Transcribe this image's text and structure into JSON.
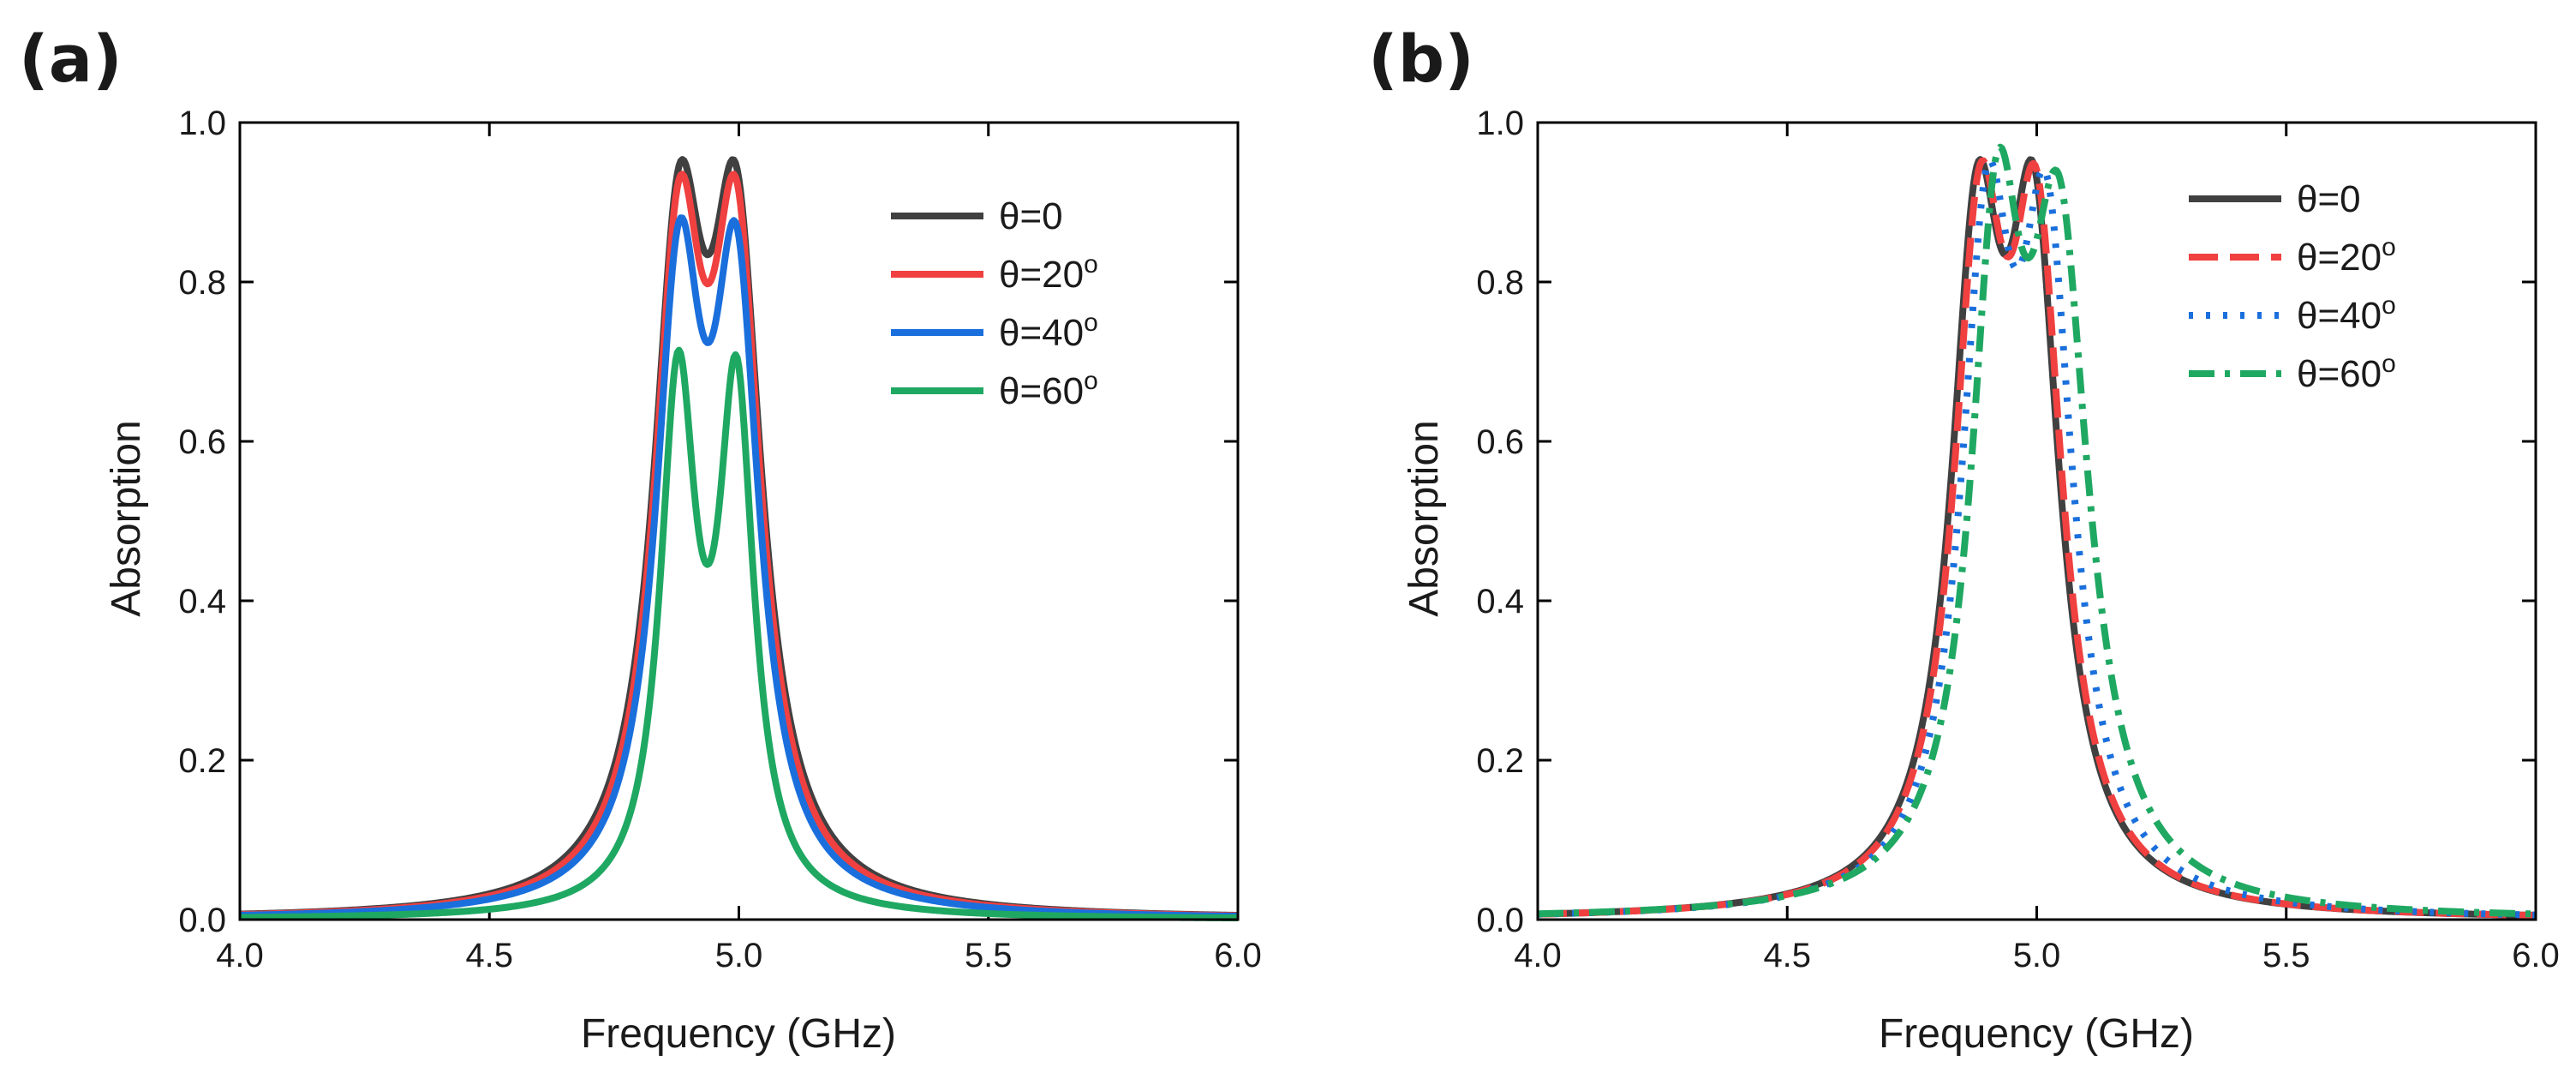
{
  "chart_data": [
    {
      "type": "line",
      "panel_label": "(a)",
      "xlabel": "Frequency (GHz)",
      "ylabel": "Absorption",
      "xlim": [
        4.0,
        6.0
      ],
      "ylim": [
        0.0,
        1.0
      ],
      "xticks": [
        4.0,
        4.5,
        5.0,
        5.5,
        6.0
      ],
      "yticks": [
        0.0,
        0.2,
        0.4,
        0.6,
        0.8,
        1.0
      ],
      "xtick_labels": [
        "4.0",
        "4.5",
        "5.0",
        "5.5",
        "6.0"
      ],
      "ytick_labels": [
        "0.0",
        "0.2",
        "0.4",
        "0.6",
        "0.8",
        "1.0"
      ],
      "legend_position": "upper-right",
      "series": [
        {
          "name": "θ=0",
          "name_base": "θ=0",
          "name_sup": "",
          "color": "#404040",
          "dash": "solid",
          "params": {
            "f1": 4.88,
            "f2": 4.995,
            "g1": 0.125,
            "g2": 0.125,
            "a1": 0.77,
            "a2": 0.77
          }
        },
        {
          "name": "θ=20°",
          "name_base": "θ=20",
          "name_sup": "o",
          "color": "#f04040",
          "dash": "solid",
          "params": {
            "f1": 4.88,
            "f2": 4.995,
            "g1": 0.12,
            "g2": 0.12,
            "a1": 0.765,
            "a2": 0.765
          }
        },
        {
          "name": "θ=40°",
          "name_base": "θ=40",
          "name_sup": "o",
          "color": "#1a6fdc",
          "dash": "solid",
          "params": {
            "f1": 4.88,
            "f2": 4.995,
            "g1": 0.115,
            "g2": 0.113,
            "a1": 0.735,
            "a2": 0.725
          }
        },
        {
          "name": "θ=60°",
          "name_base": "θ=60",
          "name_sup": "o",
          "color": "#1fa862",
          "dash": "solid",
          "params": {
            "f1": 4.878,
            "f2": 4.995,
            "g1": 0.087,
            "g2": 0.085,
            "a1": 0.64,
            "a2": 0.63
          }
        }
      ]
    },
    {
      "type": "line",
      "panel_label": "(b)",
      "xlabel": "Frequency (GHz)",
      "ylabel": "Absorption",
      "xlim": [
        4.0,
        6.0
      ],
      "ylim": [
        0.0,
        1.0
      ],
      "xticks": [
        4.0,
        4.5,
        5.0,
        5.5,
        6.0
      ],
      "yticks": [
        0.0,
        0.2,
        0.4,
        0.6,
        0.8,
        1.0
      ],
      "xtick_labels": [
        "4.0",
        "4.5",
        "5.0",
        "5.5",
        "6.0"
      ],
      "ytick_labels": [
        "0.0",
        "0.2",
        "0.4",
        "0.6",
        "0.8",
        "1.0"
      ],
      "legend_position": "upper-right",
      "series": [
        {
          "name": "θ=0",
          "name_base": "θ=0",
          "name_sup": "",
          "color": "#404040",
          "dash": "solid",
          "params": {
            "f1": 4.88,
            "f2": 4.995,
            "g1": 0.125,
            "g2": 0.125,
            "a1": 0.77,
            "a2": 0.77
          }
        },
        {
          "name": "θ=20°",
          "name_base": "θ=20",
          "name_sup": "o",
          "color": "#f04040",
          "dash": "dash",
          "params": {
            "f1": 4.885,
            "f2": 5.0,
            "g1": 0.125,
            "g2": 0.125,
            "a1": 0.77,
            "a2": 0.765
          }
        },
        {
          "name": "θ=40°",
          "name_base": "θ=40",
          "name_sup": "o",
          "color": "#1a6fdc",
          "dash": "dot",
          "params": {
            "f1": 4.9,
            "f2": 5.02,
            "g1": 0.125,
            "g2": 0.13,
            "a1": 0.77,
            "a2": 0.77
          }
        },
        {
          "name": "θ=60°",
          "name_base": "θ=60",
          "name_sup": "o",
          "color": "#1fa862",
          "dash": "dashdot",
          "params": {
            "f1": 4.92,
            "f2": 5.045,
            "g1": 0.125,
            "g2": 0.145,
            "a1": 0.765,
            "a2": 0.78
          }
        }
      ]
    }
  ]
}
